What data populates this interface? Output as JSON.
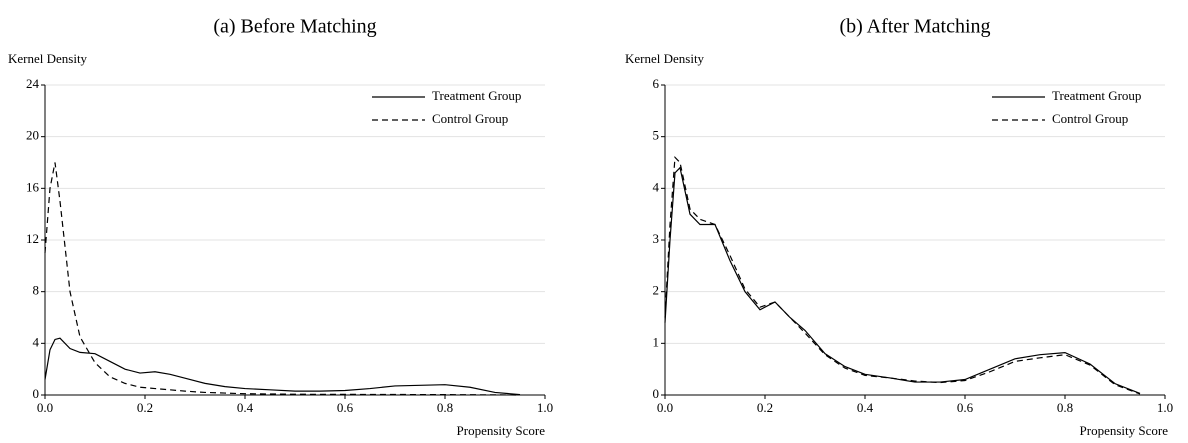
{
  "chart_data": [
    {
      "type": "line",
      "title": "(a) Before Matching",
      "y_label": "Kernel Density",
      "x_label": "Propensity Score",
      "x": [
        0,
        0.01,
        0.02,
        0.03,
        0.05,
        0.07,
        0.1,
        0.13,
        0.16,
        0.19,
        0.22,
        0.25,
        0.28,
        0.32,
        0.36,
        0.4,
        0.45,
        0.5,
        0.55,
        0.6,
        0.65,
        0.7,
        0.75,
        0.8,
        0.85,
        0.9,
        0.95
      ],
      "series": [
        {
          "name": "Treatment Group",
          "color": "#000000",
          "linestyle": "solid",
          "values": [
            1.2,
            3.5,
            4.3,
            4.4,
            3.6,
            3.3,
            3.2,
            2.6,
            2.0,
            1.7,
            1.8,
            1.6,
            1.3,
            0.9,
            0.65,
            0.5,
            0.4,
            0.3,
            0.3,
            0.35,
            0.5,
            0.7,
            0.75,
            0.8,
            0.6,
            0.2,
            0.03
          ]
        },
        {
          "name": "Control Group",
          "color": "#000000",
          "linestyle": "dashed",
          "values": [
            11,
            16,
            18,
            15,
            8,
            4.5,
            2.5,
            1.4,
            0.9,
            0.6,
            0.5,
            0.4,
            0.3,
            0.2,
            0.15,
            0.1,
            0.08,
            0.06,
            0.05,
            0.05,
            0.04,
            0.04,
            0.03,
            0.03,
            0.02,
            0.01,
            0
          ]
        }
      ],
      "xlim": [
        0,
        1
      ],
      "ylim": [
        0,
        24
      ],
      "xticks": [
        {
          "value": 0,
          "label": "0.0"
        },
        0.2,
        0.4,
        0.6,
        0.8,
        {
          "value": 1,
          "label": "1.0"
        }
      ],
      "yticks": [
        0,
        4,
        8,
        12,
        16,
        20,
        24
      ],
      "grid": true,
      "legend": "upper right"
    },
    {
      "type": "line",
      "title": "(b) After Matching",
      "y_label": "Kernel Density",
      "x_label": "Propensity Score",
      "x": [
        0,
        0.01,
        0.02,
        0.03,
        0.05,
        0.07,
        0.1,
        0.13,
        0.16,
        0.19,
        0.22,
        0.25,
        0.28,
        0.32,
        0.36,
        0.4,
        0.45,
        0.5,
        0.55,
        0.6,
        0.65,
        0.7,
        0.75,
        0.8,
        0.85,
        0.9,
        0.95
      ],
      "series": [
        {
          "name": "Treatment Group",
          "color": "#000000",
          "linestyle": "solid",
          "values": [
            1.4,
            3.0,
            4.3,
            4.4,
            3.5,
            3.3,
            3.3,
            2.6,
            2.0,
            1.65,
            1.8,
            1.5,
            1.25,
            0.8,
            0.55,
            0.4,
            0.33,
            0.25,
            0.25,
            0.3,
            0.5,
            0.7,
            0.78,
            0.82,
            0.6,
            0.22,
            0.03
          ]
        },
        {
          "name": "Control Group",
          "color": "#000000",
          "linestyle": "dashed",
          "values": [
            1.5,
            3.3,
            4.6,
            4.5,
            3.6,
            3.4,
            3.3,
            2.7,
            2.05,
            1.7,
            1.8,
            1.5,
            1.2,
            0.78,
            0.52,
            0.38,
            0.33,
            0.27,
            0.24,
            0.28,
            0.45,
            0.65,
            0.72,
            0.78,
            0.58,
            0.2,
            0.02
          ]
        }
      ],
      "xlim": [
        0,
        1
      ],
      "ylim": [
        0,
        6
      ],
      "xticks": [
        {
          "value": 0,
          "label": "0.0"
        },
        0.2,
        0.4,
        0.6,
        0.8,
        {
          "value": 1,
          "label": "1.0"
        }
      ],
      "yticks": [
        0,
        1,
        2,
        3,
        4,
        5,
        6
      ],
      "grid": true,
      "legend": "upper right"
    }
  ]
}
